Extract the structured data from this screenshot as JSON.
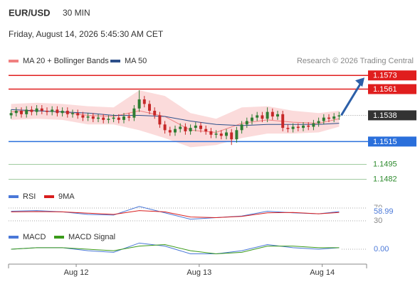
{
  "chart_data": {
    "type": "candlestick",
    "title": "EUR/USD",
    "subtitle": "30 MIN",
    "date": "Friday, August 14, 2026 5:45:30 AM CET",
    "source": "Research © 2026 Trading Central",
    "up_color": "#2e7d32",
    "down_color": "#c62828",
    "ylim": [
      1.1476,
      1.158
    ],
    "xlim": [
      -0.5,
      69.36
    ],
    "xticks": [
      {
        "value": 12.7,
        "label": "Aug 12"
      },
      {
        "value": 36.7,
        "label": "Aug 13"
      },
      {
        "value": 60.7,
        "label": "Aug 14"
      }
    ],
    "open": [
      1.1538,
      1.154,
      1.1542,
      1.1539,
      1.1543,
      1.1541,
      1.1544,
      1.1542,
      1.1541,
      1.1543,
      1.154,
      1.1542,
      1.1539,
      1.154,
      1.1538,
      1.1536,
      1.1537,
      1.1535,
      1.1536,
      1.1534,
      1.1535,
      1.1536,
      1.1534,
      1.1537,
      1.1536,
      1.1544,
      1.1552,
      1.1548,
      1.1542,
      1.1538,
      1.153,
      1.1525,
      1.1523,
      1.1526,
      1.1528,
      1.1524,
      1.1527,
      1.1529,
      1.1526,
      1.1524,
      1.1521,
      1.1522,
      1.152,
      1.1523,
      1.1517,
      1.1525,
      1.153,
      1.1533,
      1.1536,
      1.1538,
      1.1535,
      1.1541,
      1.1537,
      1.1539,
      1.1527,
      1.1526,
      1.1528,
      1.1527,
      1.1529,
      1.1528,
      1.1531,
      1.1533,
      1.1536,
      1.1535,
      1.1537
    ],
    "high": [
      1.1543,
      1.1545,
      1.1545,
      1.1546,
      1.1546,
      1.1547,
      1.1547,
      1.1545,
      1.1546,
      1.1546,
      1.1545,
      1.1545,
      1.1543,
      1.1543,
      1.1541,
      1.154,
      1.154,
      1.1539,
      1.1539,
      1.1538,
      1.1539,
      1.1539,
      1.154,
      1.154,
      1.1547,
      1.156,
      1.1555,
      1.1551,
      1.1545,
      1.1541,
      1.1533,
      1.1528,
      1.1529,
      1.1531,
      1.1531,
      1.153,
      1.1532,
      1.1532,
      1.1529,
      1.1527,
      1.1525,
      1.1525,
      1.1526,
      1.1526,
      1.1528,
      1.1533,
      1.1536,
      1.1539,
      1.1541,
      1.1541,
      1.1545,
      1.1544,
      1.1542,
      1.1542,
      1.153,
      1.1531,
      1.1531,
      1.1532,
      1.1532,
      1.1534,
      1.1536,
      1.1539,
      1.1539,
      1.154,
      1.1541
    ],
    "low": [
      1.1535,
      1.1537,
      1.1536,
      1.1536,
      1.1538,
      1.1538,
      1.1539,
      1.1538,
      1.1538,
      1.1537,
      1.1537,
      1.1536,
      1.1536,
      1.1535,
      1.1533,
      1.1533,
      1.1532,
      1.1532,
      1.1531,
      1.1531,
      1.1532,
      1.1531,
      1.1531,
      1.1533,
      1.1533,
      1.1541,
      1.1545,
      1.1539,
      1.1535,
      1.1527,
      1.1522,
      1.152,
      1.152,
      1.1523,
      1.1521,
      1.1521,
      1.1524,
      1.1523,
      1.1521,
      1.1518,
      1.1518,
      1.1517,
      1.1517,
      1.1512,
      1.1514,
      1.1522,
      1.1527,
      1.153,
      1.1533,
      1.1532,
      1.1532,
      1.1534,
      1.1534,
      1.1524,
      1.1523,
      1.1523,
      1.1524,
      1.1524,
      1.1525,
      1.1525,
      1.1528,
      1.153,
      1.1532,
      1.1532,
      1.1534
    ],
    "close": [
      1.154,
      1.1542,
      1.1539,
      1.1543,
      1.1541,
      1.1544,
      1.1542,
      1.1541,
      1.1543,
      1.154,
      1.1542,
      1.1539,
      1.154,
      1.1538,
      1.1536,
      1.1537,
      1.1535,
      1.1536,
      1.1534,
      1.1535,
      1.1536,
      1.1534,
      1.1537,
      1.1536,
      1.1544,
      1.1552,
      1.1548,
      1.1542,
      1.1538,
      1.153,
      1.1525,
      1.1523,
      1.1526,
      1.1528,
      1.1524,
      1.1527,
      1.1529,
      1.1526,
      1.1524,
      1.1521,
      1.1522,
      1.152,
      1.1523,
      1.1517,
      1.1525,
      1.153,
      1.1533,
      1.1536,
      1.1538,
      1.1535,
      1.1541,
      1.1537,
      1.1539,
      1.1527,
      1.1526,
      1.1528,
      1.1527,
      1.1529,
      1.1528,
      1.1531,
      1.1533,
      1.1536,
      1.1535,
      1.1537,
      1.1538
    ],
    "indicator_x": [
      0,
      5,
      10,
      15,
      20,
      25,
      30,
      35,
      40,
      45,
      50,
      55,
      60,
      64
    ],
    "legend": [
      {
        "name": "MA 20 + Bollinger Bands",
        "color": "#f08080"
      },
      {
        "name": "MA 50",
        "color": "#2c4f8a"
      }
    ],
    "band_upper": [
      1.1548,
      1.1549,
      1.1548,
      1.1546,
      1.1545,
      1.156,
      1.1555,
      1.154,
      1.1535,
      1.1545,
      1.1546,
      1.1542,
      1.154,
      1.1542
    ],
    "band_lower": [
      1.1534,
      1.1535,
      1.1534,
      1.153,
      1.153,
      1.1525,
      1.1518,
      1.151,
      1.1512,
      1.1518,
      1.1522,
      1.1522,
      1.1523,
      1.1528
    ],
    "ma20": [
      1.1541,
      1.1542,
      1.1541,
      1.1538,
      1.1537,
      1.1542,
      1.1537,
      1.1525,
      1.1523,
      1.1531,
      1.1534,
      1.1532,
      1.1531,
      1.1535
    ],
    "ma50": [
      1.1543,
      1.1542,
      1.1541,
      1.154,
      1.1538,
      1.1538,
      1.1537,
      1.1533,
      1.153,
      1.1529,
      1.153,
      1.153,
      1.153,
      1.1531
    ],
    "resistance": [
      1.1573,
      1.1561
    ],
    "resistance_color": "#e01e1e",
    "current": 1.1538,
    "current_color": "#333333",
    "support": [
      1.1515
    ],
    "support_color": "#2a6fdb",
    "targets": [
      1.1495,
      1.1482
    ],
    "target_color": "#2e8b2e",
    "rsi": {
      "ylim": [
        20,
        90
      ],
      "yticks": [
        70,
        30
      ],
      "last_label": 58.99,
      "series": [
        {
          "name": "RSI",
          "color": "#4a78d8",
          "values": [
            60,
            62,
            58,
            50,
            48,
            75,
            55,
            35,
            40,
            45,
            60,
            55,
            52,
            58.99
          ]
        },
        {
          "name": "9MA",
          "color": "#d81e1e",
          "values": [
            58,
            59,
            58,
            54,
            50,
            62,
            58,
            42,
            40,
            44,
            55,
            56,
            52,
            56
          ]
        }
      ]
    },
    "macd": {
      "ylim": [
        -0.0006,
        0.0006
      ],
      "yticks": [
        {
          "value": 0,
          "label": "0.00"
        }
      ],
      "series": [
        {
          "name": "MACD",
          "color": "#4a78d8",
          "values": [
            0.0,
            0.0001,
            0.0001,
            -0.0001,
            -0.0002,
            0.0004,
            0.0002,
            -0.0003,
            -0.0003,
            -0.0001,
            0.0003,
            0.0001,
            0.0,
            0.0001
          ]
        },
        {
          "name": "MACD Signal",
          "color": "#3a9a1a",
          "values": [
            0.0,
            0.0001,
            0.0001,
            0.0,
            -0.0001,
            0.0002,
            0.0003,
            -0.0001,
            -0.0003,
            -0.0002,
            0.0002,
            0.0002,
            0.0001,
            0.0001
          ]
        }
      ]
    }
  }
}
